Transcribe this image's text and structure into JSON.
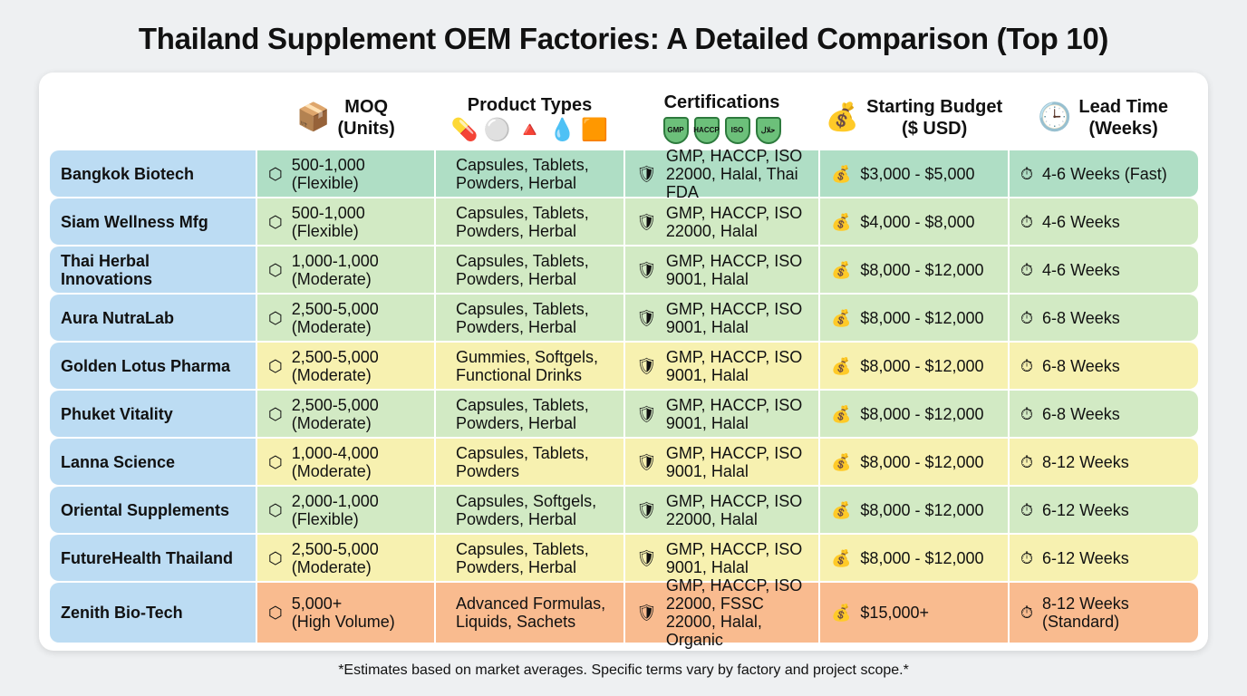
{
  "title": "Thailand Supplement OEM Factories: A Detailed Comparison (Top 10)",
  "headers": {
    "moq": "MOQ\n(Units)",
    "product_types": "Product Types",
    "certifications": "Certifications",
    "budget": "Starting Budget\n($ USD)",
    "lead_time": "Lead Time\n(Weeks)"
  },
  "header_badges": [
    "GMP",
    "HACCP",
    "ISO",
    "حلال"
  ],
  "colors": {
    "name": "#bcdcf3",
    "teal": "#afdec5",
    "green": "#d2eac4",
    "yellow": "#f7f1b0",
    "orange": "#f9bb8f"
  },
  "rows": [
    {
      "name": "Bangkok Biotech",
      "moq": "500-1,000",
      "moq_note": "(Flexible)",
      "products": "Capsules, Tablets, Powders, Herbal",
      "certs": "GMP, HACCP, ISO 22000, Halal, Thai FDA",
      "budget": "$3,000 - $5,000",
      "lead": "4-6 Weeks (Fast)",
      "tone": "teal"
    },
    {
      "name": "Siam Wellness Mfg",
      "moq": "500-1,000",
      "moq_note": "(Flexible)",
      "products": "Capsules, Tablets, Powders, Herbal",
      "certs": "GMP, HACCP, ISO 22000, Halal",
      "budget": "$4,000 - $8,000",
      "lead": "4-6 Weeks",
      "tone": "green"
    },
    {
      "name": "Thai Herbal Innovations",
      "moq": "1,000-1,000",
      "moq_note": "(Moderate)",
      "products": "Capsules, Tablets, Powders, Herbal",
      "certs": "GMP, HACCP, ISO 9001, Halal",
      "budget": "$8,000 - $12,000",
      "lead": "4-6 Weeks",
      "tone": "green"
    },
    {
      "name": "Aura NutraLab",
      "moq": "2,500-5,000",
      "moq_note": "(Moderate)",
      "products": "Capsules, Tablets, Powders, Herbal",
      "certs": "GMP, HACCP, ISO 9001, Halal",
      "budget": "$8,000 - $12,000",
      "lead": "6-8 Weeks",
      "tone": "green"
    },
    {
      "name": "Golden Lotus Pharma",
      "moq": "2,500-5,000",
      "moq_note": "(Moderate)",
      "products": "Gummies, Softgels, Functional Drinks",
      "certs": "GMP, HACCP, ISO 9001, Halal",
      "budget": "$8,000 - $12,000",
      "lead": "6-8 Weeks",
      "tone": "yellow"
    },
    {
      "name": "Phuket Vitality",
      "moq": "2,500-5,000",
      "moq_note": "(Moderate)",
      "products": "Capsules, Tablets, Powders, Herbal",
      "certs": "GMP, HACCP, ISO 9001, Halal",
      "budget": "$8,000 - $12,000",
      "lead": "6-8 Weeks",
      "tone": "green"
    },
    {
      "name": "Lanna Science",
      "moq": "1,000-4,000",
      "moq_note": "(Moderate)",
      "products": "Capsules, Tablets, Powders",
      "certs": "GMP, HACCP, ISO 9001, Halal",
      "budget": "$8,000 - $12,000",
      "lead": "8-12 Weeks",
      "tone": "yellow"
    },
    {
      "name": "Oriental Supplements",
      "moq": "2,000-1,000",
      "moq_note": "(Flexible)",
      "products": "Capsules, Softgels, Powders, Herbal",
      "certs": "GMP, HACCP, ISO 22000, Halal",
      "budget": "$8,000 - $12,000",
      "lead": "6-12 Weeks",
      "tone": "green"
    },
    {
      "name": "FutureHealth Thailand",
      "moq": "2,500-5,000",
      "moq_note": "(Moderate)",
      "products": "Capsules, Tablets, Powders, Herbal",
      "certs": "GMP, HACCP, ISO 9001, Halal",
      "budget": "$8,000 - $12,000",
      "lead": "6-12 Weeks",
      "tone": "yellow"
    },
    {
      "name": "Zenith Bio-Tech",
      "moq": "5,000+",
      "moq_note": "(High Volume)",
      "products": "Advanced Formulas, Liquids, Sachets",
      "certs": "GMP, HACCP, ISO 22000, FSSC 22000, Halal, Organic",
      "budget": "$15,000+",
      "lead": "8-12 Weeks (Standard)",
      "tone": "orange"
    }
  ],
  "footnote": "*Estimates based on market averages. Specific terms vary by factory and project scope.*"
}
